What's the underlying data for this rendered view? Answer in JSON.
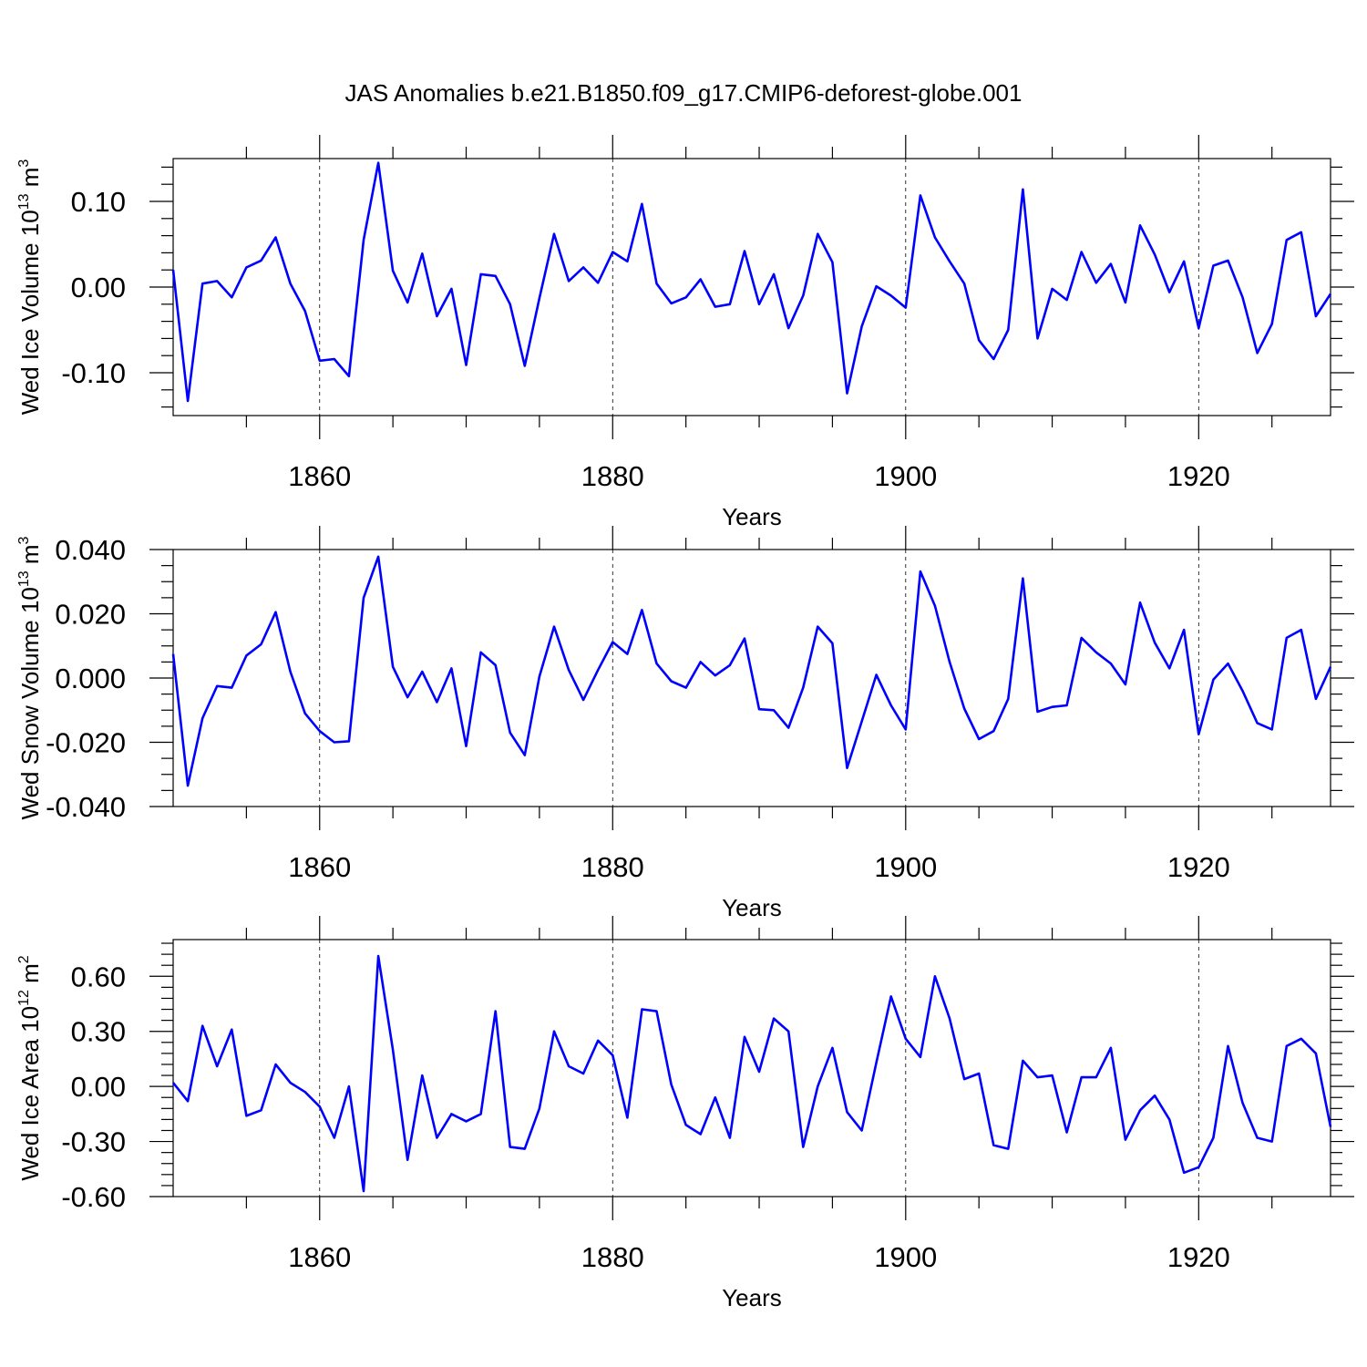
{
  "chart_data": {
    "title": "JAS Anomalies b.e21.B1850.f09_g17.CMIP6-deforest-globe.001",
    "type": "line",
    "series_color": "#0000ff",
    "x": [
      1850,
      1851,
      1852,
      1853,
      1854,
      1855,
      1856,
      1857,
      1858,
      1859,
      1860,
      1861,
      1862,
      1863,
      1864,
      1865,
      1866,
      1867,
      1868,
      1869,
      1870,
      1871,
      1872,
      1873,
      1874,
      1875,
      1876,
      1877,
      1878,
      1879,
      1880,
      1881,
      1882,
      1883,
      1884,
      1885,
      1886,
      1887,
      1888,
      1889,
      1890,
      1891,
      1892,
      1893,
      1894,
      1895,
      1896,
      1897,
      1898,
      1899,
      1900,
      1901,
      1902,
      1903,
      1904,
      1905,
      1906,
      1907,
      1908,
      1909,
      1910,
      1911,
      1912,
      1913,
      1914,
      1915,
      1916,
      1917,
      1918,
      1919,
      1920,
      1921,
      1922,
      1923,
      1924,
      1925,
      1926,
      1927,
      1928,
      1929
    ],
    "panels": [
      {
        "name": "ice-volume",
        "ylabel": "Wed Ice Volume 10",
        "ylabel_exp": "13",
        "ylabel_unit": " m",
        "ylabel_unit_exp": "3",
        "xlabel": "Years",
        "xlim": [
          1850,
          1929
        ],
        "ylim": [
          -0.15,
          0.15
        ],
        "yticks": [
          0.1,
          0.0,
          -0.1
        ],
        "ytick_labels": [
          "0.10",
          "0.00",
          "-0.10"
        ],
        "yminor": [
          0.14,
          0.12,
          0.08,
          0.06,
          0.04,
          0.02,
          -0.02,
          -0.04,
          -0.06,
          -0.08,
          -0.12,
          -0.14
        ],
        "xticks": [
          1860,
          1880,
          1900,
          1920
        ],
        "xtick_labels": [
          "1860",
          "1880",
          "1900",
          "1920"
        ],
        "xminor": [
          1855,
          1865,
          1870,
          1875,
          1885,
          1890,
          1895,
          1905,
          1910,
          1915,
          1925
        ],
        "values": [
          0.02,
          -0.133,
          0.004,
          0.007,
          -0.012,
          0.023,
          0.031,
          0.058,
          0.004,
          -0.028,
          -0.086,
          -0.084,
          -0.104,
          0.055,
          0.145,
          0.019,
          -0.018,
          0.039,
          -0.034,
          -0.002,
          -0.091,
          0.015,
          0.013,
          -0.02,
          -0.092,
          -0.013,
          0.062,
          0.007,
          0.023,
          0.005,
          0.041,
          0.03,
          0.097,
          0.004,
          -0.019,
          -0.012,
          0.009,
          -0.023,
          -0.02,
          0.042,
          -0.02,
          0.015,
          -0.048,
          -0.01,
          0.062,
          0.029,
          -0.124,
          -0.046,
          0.001,
          -0.01,
          -0.024,
          0.107,
          0.058,
          0.03,
          0.004,
          -0.062,
          -0.084,
          -0.05,
          0.114,
          -0.06,
          -0.002,
          -0.015,
          0.041,
          0.005,
          0.027,
          -0.018,
          0.072,
          0.038,
          -0.006,
          0.03,
          -0.048,
          0.025,
          0.031,
          -0.012,
          -0.077,
          -0.043,
          0.055,
          0.064,
          -0.034,
          -0.008
        ]
      },
      {
        "name": "snow-volume",
        "ylabel": "Wed Snow Volume 10",
        "ylabel_exp": "13",
        "ylabel_unit": " m",
        "ylabel_unit_exp": "3",
        "xlabel": "Years",
        "xlim": [
          1850,
          1929
        ],
        "ylim": [
          -0.04,
          0.04
        ],
        "yticks": [
          0.04,
          0.02,
          0.0,
          -0.02,
          -0.04
        ],
        "ytick_labels": [
          "0.040",
          "0.020",
          "0.000",
          "-0.020",
          "-0.040"
        ],
        "yminor": [
          0.035,
          0.03,
          0.025,
          0.015,
          0.01,
          0.005,
          -0.005,
          -0.01,
          -0.015,
          -0.025,
          -0.03,
          -0.035
        ],
        "xticks": [
          1860,
          1880,
          1900,
          1920
        ],
        "xtick_labels": [
          "1860",
          "1880",
          "1900",
          "1920"
        ],
        "xminor": [
          1855,
          1865,
          1870,
          1875,
          1885,
          1890,
          1895,
          1905,
          1910,
          1915,
          1925
        ],
        "values": [
          0.0075,
          -0.0335,
          -0.0125,
          -0.0025,
          -0.003,
          0.007,
          0.0105,
          0.0205,
          0.002,
          -0.011,
          -0.0165,
          -0.02,
          -0.0197,
          0.025,
          0.0378,
          0.0035,
          -0.006,
          0.002,
          -0.0075,
          0.003,
          -0.0212,
          0.008,
          0.004,
          -0.017,
          -0.024,
          0.0005,
          0.016,
          0.0025,
          -0.0068,
          0.0025,
          0.0112,
          0.0075,
          0.0212,
          0.0045,
          -0.001,
          -0.003,
          0.005,
          0.0008,
          0.004,
          0.0123,
          -0.0097,
          -0.01,
          -0.0155,
          -0.003,
          0.016,
          0.0108,
          -0.028,
          -0.0135,
          0.001,
          -0.0085,
          -0.016,
          0.0332,
          0.0225,
          0.005,
          -0.0095,
          -0.019,
          -0.0165,
          -0.0065,
          0.031,
          -0.0105,
          -0.009,
          -0.0085,
          0.0125,
          0.008,
          0.0045,
          -0.002,
          0.0235,
          0.011,
          0.003,
          0.015,
          -0.0175,
          -0.0005,
          0.0045,
          -0.004,
          -0.014,
          -0.016,
          0.0125,
          0.015,
          -0.0065,
          0.0035
        ]
      },
      {
        "name": "ice-area",
        "ylabel": "Wed Ice Area 10",
        "ylabel_exp": "12",
        "ylabel_unit": " m",
        "ylabel_unit_exp": "2",
        "xlabel": "Years",
        "xlim": [
          1850,
          1929
        ],
        "ylim": [
          -0.6,
          0.8
        ],
        "yticks": [
          0.6,
          0.3,
          0.0,
          -0.3,
          -0.6
        ],
        "ytick_labels": [
          "0.60",
          "0.30",
          "0.00",
          "-0.30",
          "-0.60"
        ],
        "yminor": [
          0.78,
          0.72,
          0.66,
          0.54,
          0.48,
          0.42,
          0.36,
          0.24,
          0.18,
          0.12,
          0.06,
          -0.06,
          -0.12,
          -0.18,
          -0.24,
          -0.36,
          -0.42,
          -0.48,
          -0.54
        ],
        "xticks": [
          1860,
          1880,
          1900,
          1920
        ],
        "xtick_labels": [
          "1860",
          "1880",
          "1900",
          "1920"
        ],
        "xminor": [
          1855,
          1865,
          1870,
          1875,
          1885,
          1890,
          1895,
          1905,
          1910,
          1915,
          1925
        ],
        "values": [
          0.02,
          -0.08,
          0.33,
          0.11,
          0.31,
          -0.16,
          -0.13,
          0.12,
          0.02,
          -0.03,
          -0.11,
          -0.28,
          0.0,
          -0.57,
          0.71,
          0.2,
          -0.4,
          0.06,
          -0.28,
          -0.15,
          -0.19,
          -0.15,
          0.41,
          -0.33,
          -0.34,
          -0.12,
          0.3,
          0.11,
          0.07,
          0.25,
          0.17,
          -0.17,
          0.42,
          0.41,
          0.01,
          -0.21,
          -0.26,
          -0.06,
          -0.28,
          0.27,
          0.08,
          0.37,
          0.3,
          -0.33,
          0.0,
          0.21,
          -0.14,
          -0.24,
          0.13,
          0.49,
          0.26,
          0.16,
          0.6,
          0.37,
          0.04,
          0.07,
          -0.32,
          -0.34,
          0.14,
          0.05,
          0.06,
          -0.25,
          0.05,
          0.05,
          0.21,
          -0.29,
          -0.13,
          -0.05,
          -0.18,
          -0.47,
          -0.44,
          -0.28,
          0.22,
          -0.09,
          -0.28,
          -0.3,
          0.22,
          0.26,
          0.18,
          -0.22
        ]
      }
    ]
  }
}
